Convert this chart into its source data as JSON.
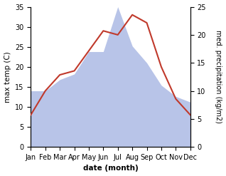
{
  "months": [
    "Jan",
    "Feb",
    "Mar",
    "Apr",
    "May",
    "Jun",
    "Jul",
    "Aug",
    "Sep",
    "Oct",
    "Nov",
    "Dec"
  ],
  "temp": [
    8,
    14,
    18,
    19,
    24,
    29,
    28,
    33,
    31,
    20,
    12,
    8
  ],
  "precip": [
    10,
    10,
    12,
    13,
    17,
    17,
    25,
    18,
    15,
    11,
    9,
    8
  ],
  "temp_color": "#c0392b",
  "precip_color": "#b8c4e8",
  "left_ylim": [
    0,
    35
  ],
  "right_ylim": [
    0,
    25
  ],
  "left_yticks": [
    0,
    5,
    10,
    15,
    20,
    25,
    30,
    35
  ],
  "right_yticks": [
    0,
    5,
    10,
    15,
    20,
    25
  ],
  "xlabel": "date (month)",
  "ylabel_left": "max temp (C)",
  "ylabel_right": "med. precipitation (kg/m2)",
  "bg_color": "#ffffff",
  "label_fontsize": 7.5,
  "tick_fontsize": 7
}
